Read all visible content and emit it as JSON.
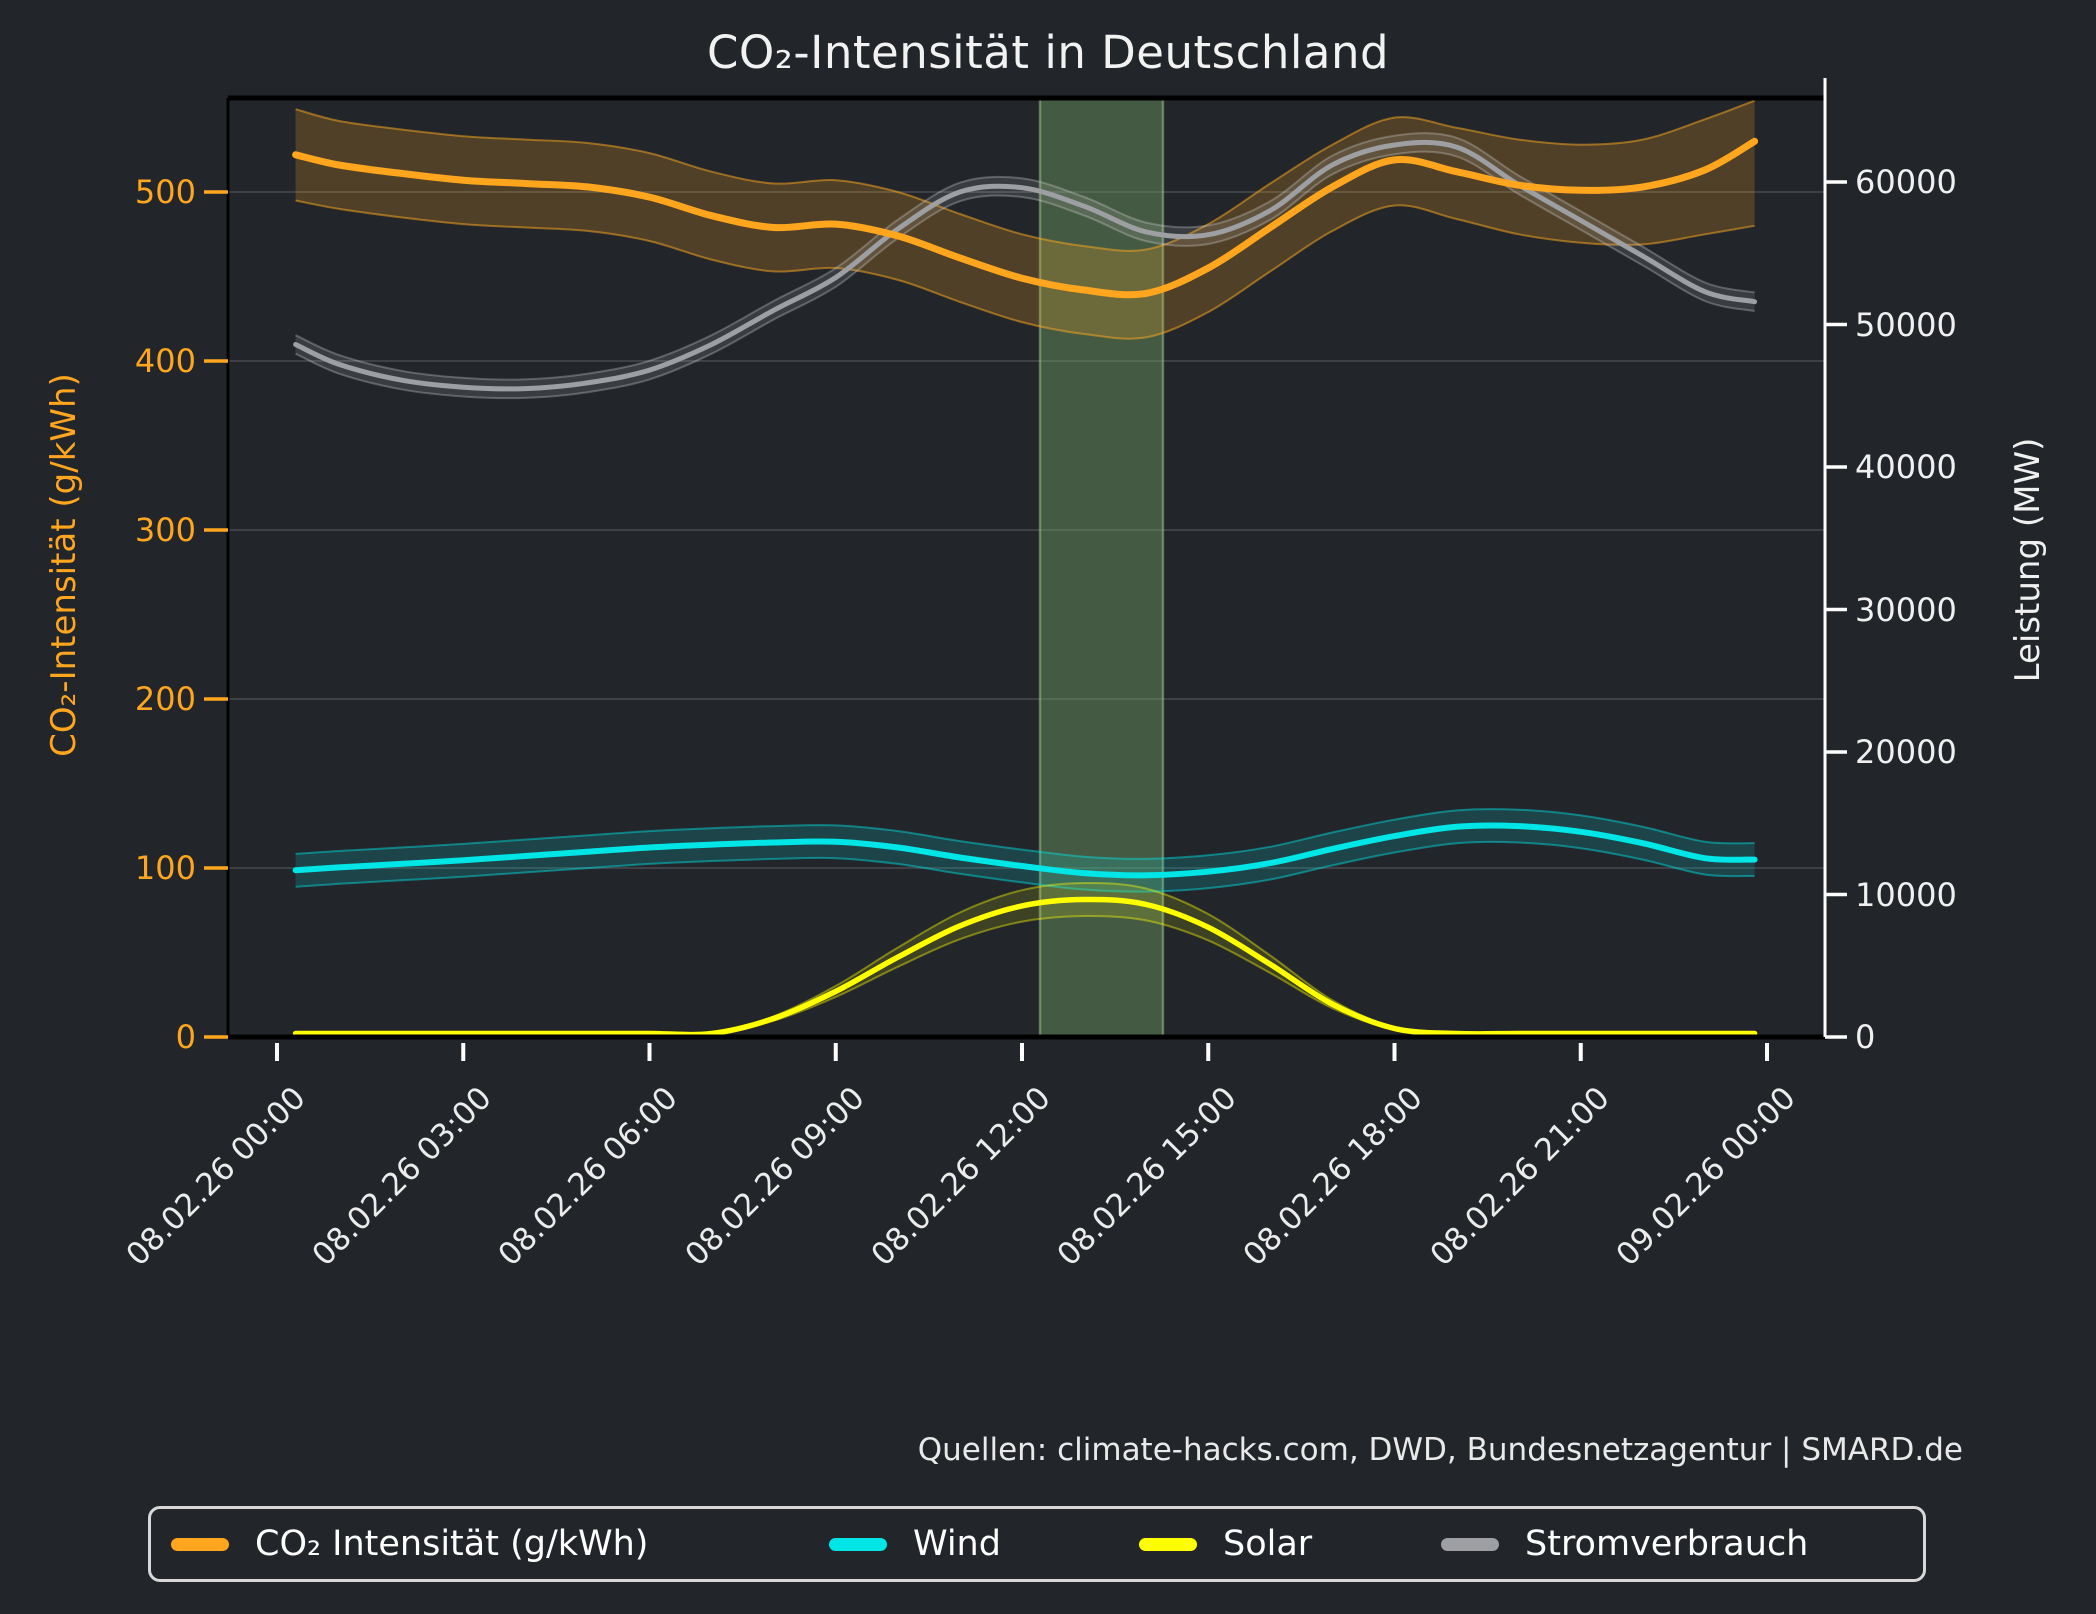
{
  "title": "CO₂-Intensität in Deutschland",
  "source_text": "Quellen: climate-hacks.com, DWD, Bundesnetzagentur | SMARD.de",
  "legend": {
    "items": [
      {
        "label": "CO₂ Intensität (g/kWh)",
        "color": "#ffa51e"
      },
      {
        "label": "Wind",
        "color": "#00e5e6"
      },
      {
        "label": "Solar",
        "color": "#ffff00"
      },
      {
        "label": "Stromverbrauch",
        "color": "#9d9fa2"
      }
    ]
  },
  "chart_data": {
    "type": "line",
    "title": "CO₂-Intensität in Deutschland",
    "left_axis": {
      "label": "CO₂-Intensität (g/kWh)",
      "ticks": [
        0,
        100,
        200,
        300,
        400,
        500
      ],
      "range": [
        0,
        555
      ],
      "color": "#ffa51e"
    },
    "right_axis": {
      "label": "Leistung (MW)",
      "ticks": [
        0,
        10000,
        20000,
        30000,
        40000,
        50000,
        60000
      ],
      "range": [
        0,
        65800
      ],
      "color": "#f0f0f0"
    },
    "x_tick_labels": [
      "08.02.26 00:00",
      "08.02.26 03:00",
      "08.02.26 06:00",
      "08.02.26 09:00",
      "08.02.26 12:00",
      "08.02.26 15:00",
      "08.02.26 18:00",
      "08.02.26 21:00",
      "09.02.26 00:00"
    ],
    "x_tick_hours": [
      0,
      3,
      6,
      9,
      12,
      15,
      18,
      21,
      24
    ],
    "grid": "horizontal-only",
    "legend_position": "bottom",
    "highlight_window": {
      "start": "12:15",
      "end": "14:15",
      "start_hour": 12.29,
      "end_hour": 14.27,
      "fill": "rgba(114,156,98,0.45)",
      "edge": "rgba(152,192,140,0.55)",
      "meaning": "greenest time window"
    },
    "x_hours": [
      0.3,
      1,
      2,
      3,
      4,
      5,
      6,
      7,
      8,
      9,
      10,
      11,
      12,
      13,
      14,
      15,
      16,
      17,
      18,
      19,
      20,
      21,
      22,
      23,
      23.8
    ],
    "series": [
      {
        "name": "CO₂ Intensität (g/kWh)",
        "axis": "left",
        "unit": "g/kWh",
        "color": "#ffa51e",
        "values": [
          522,
          516,
          511,
          507,
          505,
          503,
          497,
          486,
          479,
          481,
          474,
          461,
          449,
          442,
          440,
          455,
          479,
          503,
          519,
          512,
          504,
          501,
          503,
          513,
          530
        ],
        "band_hi": [
          549,
          542,
          537,
          533,
          531,
          529,
          523,
          512,
          505,
          507,
          500,
          487,
          475,
          468,
          466,
          481,
          505,
          528,
          544,
          538,
          531,
          528,
          531,
          543,
          554
        ],
        "band_lo": [
          495,
          490,
          485,
          481,
          479,
          477,
          471,
          460,
          453,
          455,
          448,
          435,
          423,
          416,
          414,
          429,
          453,
          477,
          492,
          484,
          475,
          470,
          469,
          475,
          480
        ],
        "band_fill": "rgba(255,165,30,0.21)",
        "band_edge": "rgba(255,170,30,0.5)",
        "width": 7
      },
      {
        "name": "Wind",
        "axis": "right",
        "unit": "MW",
        "color": "#00e5e6",
        "values": [
          11700,
          11900,
          12150,
          12400,
          12700,
          13000,
          13300,
          13500,
          13650,
          13700,
          13300,
          12600,
          12000,
          11500,
          11350,
          11600,
          12200,
          13200,
          14100,
          14750,
          14800,
          14400,
          13600,
          12550,
          12450
        ],
        "band_delta": 1150,
        "band_fill": "rgba(0,229,230,0.16)",
        "band_edge": "rgba(0,229,230,0.45)",
        "width": 6
      },
      {
        "name": "Solar",
        "axis": "right",
        "unit": "MW",
        "color": "#ffff00",
        "values": [
          0,
          0,
          0,
          0,
          0,
          0,
          0,
          150,
          1300,
          3200,
          5600,
          7800,
          9200,
          9650,
          9300,
          7700,
          5100,
          2300,
          600,
          100,
          0,
          0,
          0,
          0,
          0
        ],
        "band_pct": 0.12,
        "band_fill": "rgba(255,255,0,0.13)",
        "band_edge": "rgba(255,255,0,0.4)",
        "width": 5.5
      },
      {
        "name": "Stromverbrauch",
        "axis": "right",
        "unit": "MW",
        "color": "#9d9fa2",
        "values": [
          48600,
          47200,
          46100,
          45600,
          45500,
          45900,
          46800,
          48600,
          51000,
          53300,
          56700,
          59300,
          59600,
          58300,
          56500,
          56300,
          58000,
          61200,
          62600,
          62450,
          59800,
          57300,
          54800,
          52300,
          51600
        ],
        "band_delta": 650,
        "band_fill": "rgba(220,220,220,0.13)",
        "band_edge": "rgba(220,220,220,0.3)",
        "width": 5
      }
    ]
  }
}
